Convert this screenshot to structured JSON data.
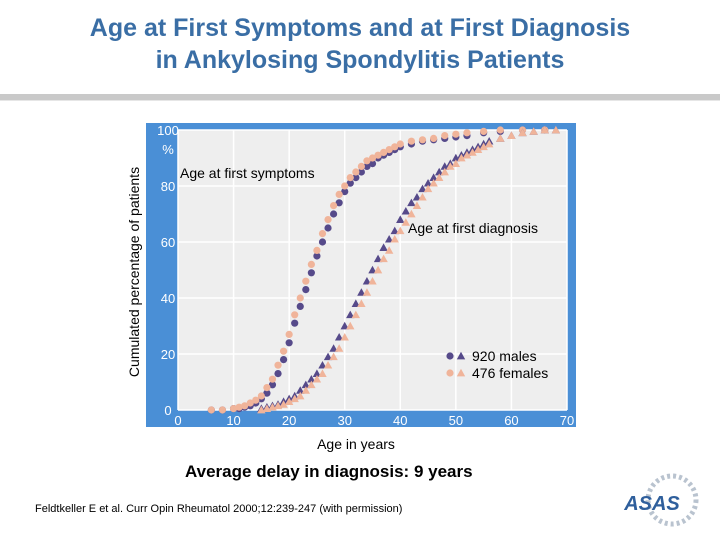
{
  "slide": {
    "title_line1": "Age at First Symptoms and at First Diagnosis",
    "title_line2": "in Ankylosing Spondylitis Patients",
    "subtitle": "Average delay in diagnosis: 9 years",
    "citation": "Feldtkeller E et al. Curr Opin Rheumatol 2000;12:239-247 (with permission)",
    "logo_text": "ASAS"
  },
  "colors": {
    "title": "#3a6ea5",
    "plot_bg": "#eeeeee",
    "frame_bg": "#4a8fd6",
    "male": "#564a8a",
    "female": "#f0b49a"
  },
  "chart_data": {
    "type": "scatter",
    "title": "",
    "xlabel": "Age in years",
    "ylabel": "Cumulated percentage of patients",
    "ylabel_unit": "%",
    "xlim": [
      0,
      70
    ],
    "ylim": [
      0,
      100
    ],
    "xticks": [
      0,
      10,
      20,
      30,
      40,
      50,
      60,
      70
    ],
    "yticks": [
      0,
      20,
      40,
      60,
      80,
      100
    ],
    "grid": true,
    "annotations": [
      "Age at first symptoms",
      "Age at first diagnosis"
    ],
    "legend": [
      {
        "label": "920 males",
        "markers": [
          "circle",
          "triangle"
        ],
        "color": "male"
      },
      {
        "label": "476 females",
        "markers": [
          "circle",
          "triangle"
        ],
        "color": "female"
      }
    ],
    "series": [
      {
        "name": "Age at first symptoms - males",
        "marker": "circle",
        "color": "male",
        "x": [
          6,
          8,
          10,
          11,
          12,
          13,
          14,
          15,
          16,
          17,
          18,
          19,
          20,
          21,
          22,
          23,
          24,
          25,
          26,
          27,
          28,
          29,
          30,
          31,
          32,
          33,
          34,
          35,
          36,
          37,
          38,
          39,
          40,
          42,
          44,
          46,
          48,
          50,
          52,
          55,
          58,
          62,
          66
        ],
        "y": [
          0,
          0,
          0.5,
          0.5,
          1,
          1.5,
          2.5,
          4,
          6,
          9,
          13,
          18,
          24,
          31,
          37,
          43,
          49,
          55,
          60,
          65,
          70,
          74,
          78,
          81,
          83,
          85,
          87,
          88,
          90,
          91,
          92,
          93,
          94,
          95,
          96,
          96.5,
          97,
          97.5,
          98,
          99,
          99.5,
          100,
          100
        ]
      },
      {
        "name": "Age at first symptoms - females",
        "marker": "circle",
        "color": "female",
        "x": [
          6,
          8,
          10,
          11,
          12,
          13,
          14,
          15,
          16,
          17,
          18,
          19,
          20,
          21,
          22,
          23,
          24,
          25,
          26,
          27,
          28,
          29,
          30,
          31,
          32,
          33,
          34,
          35,
          36,
          37,
          38,
          39,
          40,
          42,
          44,
          46,
          48,
          50,
          52,
          55,
          58,
          62,
          66
        ],
        "y": [
          0,
          0,
          0.5,
          1,
          1.5,
          2.5,
          3.5,
          5,
          8,
          11,
          16,
          21,
          27,
          34,
          40,
          46,
          52,
          57,
          63,
          68,
          73,
          77,
          80,
          83,
          85,
          87,
          89,
          90,
          91,
          92,
          93,
          94,
          95,
          96,
          96.5,
          97,
          98,
          98.5,
          99,
          99.5,
          100,
          100,
          100
        ]
      },
      {
        "name": "Age at first diagnosis - males",
        "marker": "triangle",
        "color": "male",
        "x": [
          15,
          16,
          17,
          18,
          19,
          20,
          21,
          22,
          23,
          24,
          25,
          26,
          27,
          28,
          29,
          30,
          31,
          32,
          33,
          34,
          35,
          36,
          37,
          38,
          39,
          40,
          41,
          42,
          43,
          44,
          45,
          46,
          47,
          48,
          49,
          50,
          51,
          52,
          53,
          54,
          55,
          56,
          58,
          60,
          62,
          64,
          66,
          68
        ],
        "y": [
          0.5,
          1,
          1.5,
          2,
          3,
          4,
          5,
          7,
          9,
          11,
          13,
          16,
          19,
          22,
          26,
          30,
          34,
          38,
          42,
          46,
          50,
          54,
          58,
          61,
          64,
          68,
          71,
          74,
          76,
          79,
          81,
          83,
          85,
          87,
          88,
          90,
          91,
          92,
          93,
          94,
          95,
          96,
          97,
          98,
          99,
          99.5,
          100,
          100
        ]
      },
      {
        "name": "Age at first diagnosis - females",
        "marker": "triangle",
        "color": "female",
        "x": [
          15,
          16,
          17,
          18,
          19,
          20,
          21,
          22,
          23,
          24,
          25,
          26,
          27,
          28,
          29,
          30,
          31,
          32,
          33,
          34,
          35,
          36,
          37,
          38,
          39,
          40,
          41,
          42,
          43,
          44,
          45,
          46,
          47,
          48,
          49,
          50,
          51,
          52,
          53,
          54,
          55,
          56,
          58,
          60,
          62,
          64,
          66,
          68
        ],
        "y": [
          0,
          0.5,
          1,
          1.5,
          2,
          3,
          4,
          5,
          7,
          9,
          11,
          13,
          16,
          19,
          22,
          26,
          30,
          34,
          38,
          42,
          46,
          50,
          54,
          57,
          61,
          64,
          67,
          70,
          73,
          76,
          79,
          81,
          83,
          85,
          87,
          88,
          90,
          91,
          92,
          93,
          94,
          95,
          97,
          98,
          99,
          99.5,
          100,
          100
        ]
      }
    ]
  }
}
